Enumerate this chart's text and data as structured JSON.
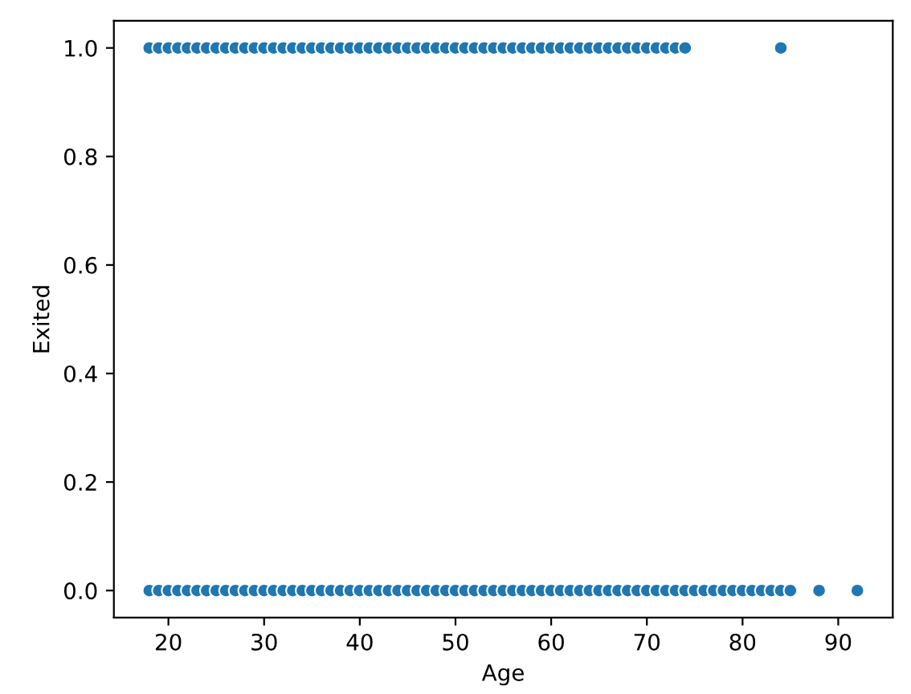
{
  "chart_data": {
    "type": "scatter",
    "xlabel": "Age",
    "ylabel": "Exited",
    "series": [
      {
        "color": "#1f77b4",
        "x": [
          18,
          19,
          20,
          21,
          22,
          23,
          24,
          25,
          26,
          27,
          28,
          29,
          30,
          31,
          32,
          33,
          34,
          35,
          36,
          37,
          38,
          39,
          40,
          41,
          42,
          43,
          44,
          45,
          46,
          47,
          48,
          49,
          50,
          51,
          52,
          53,
          54,
          55,
          56,
          57,
          58,
          59,
          60,
          61,
          62,
          63,
          64,
          65,
          66,
          67,
          68,
          69,
          70,
          71,
          72,
          73,
          74,
          84
        ],
        "values": [
          1,
          1,
          1,
          1,
          1,
          1,
          1,
          1,
          1,
          1,
          1,
          1,
          1,
          1,
          1,
          1,
          1,
          1,
          1,
          1,
          1,
          1,
          1,
          1,
          1,
          1,
          1,
          1,
          1,
          1,
          1,
          1,
          1,
          1,
          1,
          1,
          1,
          1,
          1,
          1,
          1,
          1,
          1,
          1,
          1,
          1,
          1,
          1,
          1,
          1,
          1,
          1,
          1,
          1,
          1,
          1,
          1,
          1
        ]
      },
      {
        "color": "#1f77b4",
        "x": [
          18,
          19,
          20,
          21,
          22,
          23,
          24,
          25,
          26,
          27,
          28,
          29,
          30,
          31,
          32,
          33,
          34,
          35,
          36,
          37,
          38,
          39,
          40,
          41,
          42,
          43,
          44,
          45,
          46,
          47,
          48,
          49,
          50,
          51,
          52,
          53,
          54,
          55,
          56,
          57,
          58,
          59,
          60,
          61,
          62,
          63,
          64,
          65,
          66,
          67,
          68,
          69,
          70,
          71,
          72,
          73,
          74,
          75,
          76,
          77,
          78,
          79,
          80,
          81,
          82,
          83,
          84,
          85,
          88,
          92
        ],
        "values": [
          0,
          0,
          0,
          0,
          0,
          0,
          0,
          0,
          0,
          0,
          0,
          0,
          0,
          0,
          0,
          0,
          0,
          0,
          0,
          0,
          0,
          0,
          0,
          0,
          0,
          0,
          0,
          0,
          0,
          0,
          0,
          0,
          0,
          0,
          0,
          0,
          0,
          0,
          0,
          0,
          0,
          0,
          0,
          0,
          0,
          0,
          0,
          0,
          0,
          0,
          0,
          0,
          0,
          0,
          0,
          0,
          0,
          0,
          0,
          0,
          0,
          0,
          0,
          0,
          0,
          0,
          0,
          0,
          0,
          0
        ]
      }
    ],
    "xlim": [
      14.3,
      95.7
    ],
    "xticks": [
      20,
      30,
      40,
      50,
      60,
      70,
      80,
      90
    ],
    "ylim": [
      -0.05,
      1.05
    ],
    "yticks": [
      {
        "value": 0,
        "label": "0.0"
      },
      {
        "value": 0.2,
        "label": "0.2"
      },
      {
        "value": 0.4,
        "label": "0.4"
      },
      {
        "value": 0.6,
        "label": "0.6"
      },
      {
        "value": 0.8,
        "label": "0.8"
      },
      {
        "value": 1,
        "label": "1.0"
      }
    ],
    "marker": "circle"
  }
}
